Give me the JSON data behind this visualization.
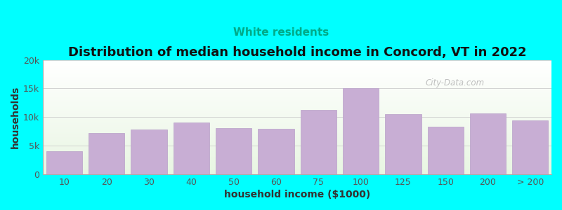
{
  "title": "Distribution of median household income in Concord, VT in 2022",
  "subtitle": "White residents",
  "xlabel": "household income ($1000)",
  "ylabel": "households",
  "background_color": "#00FFFF",
  "plot_bg_gradient_top": "#e8f5e2",
  "plot_bg_gradient_bottom": "#ffffff",
  "bar_color": "#c8aed4",
  "bar_edge_color": "#b8a0c8",
  "categories": [
    "10",
    "20",
    "30",
    "40",
    "50",
    "60",
    "75",
    "100",
    "125",
    "150",
    "200",
    "> 200"
  ],
  "values": [
    4000,
    7200,
    7800,
    9000,
    8100,
    8000,
    11200,
    15000,
    10500,
    8300,
    10700,
    9400
  ],
  "ylim": [
    0,
    20000
  ],
  "yticks": [
    0,
    5000,
    10000,
    15000,
    20000
  ],
  "ytick_labels": [
    "0",
    "5k",
    "10k",
    "15k",
    "20k"
  ],
  "title_fontsize": 13,
  "subtitle_fontsize": 11,
  "subtitle_color": "#00aa88",
  "axis_label_fontsize": 10,
  "watermark": "City-Data.com"
}
